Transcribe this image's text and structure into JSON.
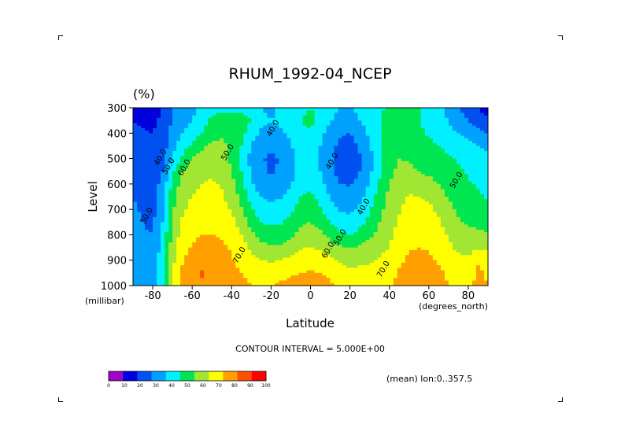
{
  "chart_data": {
    "type": "heatmap",
    "title": "RHUM_1992-04_NCEP",
    "units": "(%)",
    "xlabel": "Latitude",
    "ylabel": "Level",
    "x_units": "(degrees_north)",
    "y_units": "(millibar)",
    "x_ticks": [
      {
        "value": -80,
        "label": "-80"
      },
      {
        "value": -60,
        "label": "-60"
      },
      {
        "value": -40,
        "label": "-40"
      },
      {
        "value": -20,
        "label": "-20"
      },
      {
        "value": 0,
        "label": "0"
      },
      {
        "value": 20,
        "label": "20"
      },
      {
        "value": 40,
        "label": "40"
      },
      {
        "value": 60,
        "label": "60"
      },
      {
        "value": 80,
        "label": "80"
      }
    ],
    "y_ticks": [
      {
        "value": 300,
        "label": "300"
      },
      {
        "value": 400,
        "label": "400"
      },
      {
        "value": 500,
        "label": "500"
      },
      {
        "value": 600,
        "label": "600"
      },
      {
        "value": 700,
        "label": "700"
      },
      {
        "value": 800,
        "label": "800"
      },
      {
        "value": 900,
        "label": "900"
      },
      {
        "value": 1000,
        "label": "1000"
      }
    ],
    "xlim": [
      -90,
      90
    ],
    "ylim": [
      1000,
      300
    ],
    "contour_interval_text": "CONTOUR INTERVAL = 5.000E+00",
    "annotation": "(mean) lon:0..357.5",
    "x": [
      -90,
      -85,
      -80,
      -75,
      -70,
      -65,
      -60,
      -55,
      -50,
      -45,
      -40,
      -35,
      -30,
      -25,
      -20,
      -15,
      -10,
      -5,
      0,
      5,
      10,
      15,
      20,
      25,
      30,
      35,
      40,
      45,
      50,
      55,
      60,
      65,
      70,
      75,
      80,
      85,
      90
    ],
    "y": [
      300,
      350,
      400,
      450,
      500,
      550,
      600,
      650,
      700,
      750,
      800,
      850,
      900,
      950,
      1000
    ],
    "z": [
      [
        15,
        15,
        16,
        20,
        30,
        35,
        37,
        43,
        46,
        47,
        47,
        47,
        45,
        40,
        37,
        42,
        47,
        48,
        50,
        49,
        44,
        40,
        39,
        43,
        46,
        49,
        51,
        53,
        54,
        50,
        45,
        42,
        37,
        30,
        25,
        20,
        15
      ],
      [
        20,
        18,
        18,
        22,
        31,
        37,
        40,
        46,
        52,
        55,
        56,
        55,
        50,
        43,
        40,
        43,
        47,
        50,
        52,
        48,
        41,
        36,
        34,
        40,
        45,
        50,
        54,
        57,
        55,
        50,
        46,
        43,
        40,
        34,
        30,
        25,
        22
      ],
      [
        24,
        21,
        20,
        24,
        33,
        40,
        44,
        50,
        56,
        58,
        56,
        53,
        45,
        38,
        36,
        38,
        42,
        48,
        49,
        43,
        35,
        31,
        30,
        34,
        42,
        48,
        54,
        58,
        56,
        52,
        49,
        46,
        43,
        40,
        36,
        33,
        30
      ],
      [
        26,
        23,
        20,
        25,
        36,
        45,
        52,
        58,
        62,
        62,
        58,
        50,
        39,
        34,
        32,
        34,
        39,
        45,
        45,
        40,
        33,
        28,
        27,
        31,
        39,
        47,
        55,
        59,
        58,
        55,
        52,
        50,
        48,
        46,
        43,
        40,
        38
      ],
      [
        28,
        24,
        21,
        27,
        40,
        52,
        60,
        64,
        66,
        64,
        58,
        49,
        37,
        31,
        28,
        31,
        37,
        44,
        44,
        39,
        32,
        26,
        25,
        29,
        37,
        46,
        56,
        60,
        59,
        57,
        55,
        53,
        51,
        49,
        47,
        44,
        42
      ],
      [
        29,
        26,
        23,
        30,
        47,
        60,
        65,
        68,
        69,
        66,
        60,
        50,
        38,
        32,
        29,
        31,
        37,
        44,
        45,
        40,
        32,
        27,
        26,
        30,
        38,
        48,
        58,
        62,
        62,
        60,
        58,
        56,
        53,
        51,
        49,
        46,
        44
      ],
      [
        30,
        27,
        25,
        33,
        53,
        64,
        68,
        70,
        71,
        69,
        63,
        53,
        41,
        35,
        33,
        34,
        39,
        46,
        48,
        43,
        35,
        30,
        29,
        33,
        41,
        51,
        60,
        64,
        66,
        65,
        63,
        60,
        56,
        53,
        51,
        49,
        47
      ],
      [
        30,
        28,
        26,
        36,
        56,
        66,
        70,
        73,
        73,
        71,
        66,
        57,
        46,
        40,
        38,
        39,
        43,
        50,
        52,
        47,
        39,
        34,
        33,
        37,
        45,
        54,
        63,
        67,
        71,
        70,
        68,
        64,
        59,
        55,
        53,
        51,
        49
      ],
      [
        31,
        29,
        27,
        38,
        59,
        68,
        73,
        75,
        76,
        74,
        69,
        61,
        51,
        45,
        43,
        44,
        48,
        54,
        56,
        51,
        44,
        39,
        38,
        42,
        49,
        57,
        65,
        69,
        73,
        73,
        72,
        68,
        63,
        58,
        56,
        54,
        52
      ],
      [
        32,
        30,
        28,
        40,
        61,
        71,
        75,
        77,
        78,
        77,
        73,
        66,
        56,
        50,
        48,
        49,
        53,
        58,
        60,
        56,
        50,
        45,
        43,
        47,
        53,
        60,
        66,
        71,
        75,
        76,
        75,
        71,
        66,
        61,
        59,
        57,
        56
      ],
      [
        33,
        31,
        30,
        42,
        63,
        74,
        78,
        80,
        80,
        79,
        76,
        70,
        62,
        56,
        54,
        55,
        58,
        63,
        65,
        62,
        57,
        52,
        50,
        53,
        58,
        63,
        68,
        73,
        77,
        78,
        77,
        74,
        69,
        64,
        63,
        62,
        61
      ],
      [
        34,
        33,
        32,
        44,
        65,
        77,
        81,
        83,
        83,
        82,
        79,
        74,
        68,
        63,
        61,
        62,
        65,
        69,
        70,
        68,
        64,
        61,
        59,
        61,
        64,
        67,
        70,
        75,
        79,
        80,
        79,
        76,
        72,
        68,
        67,
        69,
        68
      ],
      [
        35,
        34,
        34,
        46,
        67,
        79,
        84,
        86,
        86,
        84,
        81,
        77,
        73,
        70,
        69,
        70,
        72,
        75,
        76,
        75,
        72,
        69,
        67,
        68,
        69,
        71,
        73,
        78,
        82,
        83,
        82,
        79,
        75,
        72,
        71,
        78,
        74
      ],
      [
        36,
        35,
        35,
        48,
        69,
        81,
        86,
        91,
        88,
        86,
        83,
        80,
        77,
        75,
        75,
        76,
        78,
        80,
        81,
        80,
        77,
        74,
        72,
        72,
        72,
        74,
        76,
        81,
        85,
        86,
        85,
        82,
        78,
        75,
        74,
        82,
        78
      ],
      [
        37,
        36,
        36,
        49,
        70,
        82,
        87,
        88,
        88,
        87,
        84,
        82,
        80,
        79,
        80,
        82,
        84,
        86,
        86,
        85,
        82,
        79,
        76,
        75,
        75,
        76,
        78,
        83,
        87,
        88,
        87,
        84,
        80,
        77,
        76,
        84,
        80
      ]
    ],
    "color_levels": [
      0,
      10,
      20,
      30,
      40,
      50,
      60,
      70,
      80,
      90,
      100
    ],
    "colors": [
      "#a000c8",
      "#0000dc",
      "#0050f0",
      "#00a0ff",
      "#00f0ff",
      "#00e650",
      "#a0e632",
      "#ffff00",
      "#ffa000",
      "#ff5000",
      "#ff0000"
    ],
    "colorbar_labels": [
      "0",
      "10",
      "20",
      "30",
      "40",
      "50",
      "60",
      "70",
      "80",
      "90",
      "100"
    ],
    "contour_labels": [
      {
        "text": "40.0",
        "x": -18,
        "y": 385
      },
      {
        "text": "40.0",
        "x": 12,
        "y": 515
      },
      {
        "text": "40.0",
        "x": 28,
        "y": 695
      },
      {
        "text": "50.0",
        "x": 16,
        "y": 815
      },
      {
        "text": "60.0",
        "x": 10,
        "y": 865
      },
      {
        "text": "70.0",
        "x": -35,
        "y": 885
      },
      {
        "text": "70.0",
        "x": 38,
        "y": 940
      },
      {
        "text": "50.0",
        "x": -41,
        "y": 480
      },
      {
        "text": "60.0",
        "x": -63,
        "y": 540
      },
      {
        "text": "50.0",
        "x": -71,
        "y": 535
      },
      {
        "text": "40.0",
        "x": -75,
        "y": 500
      },
      {
        "text": "30.0",
        "x": -82,
        "y": 730
      },
      {
        "text": "50.0",
        "x": 75,
        "y": 590
      }
    ]
  }
}
